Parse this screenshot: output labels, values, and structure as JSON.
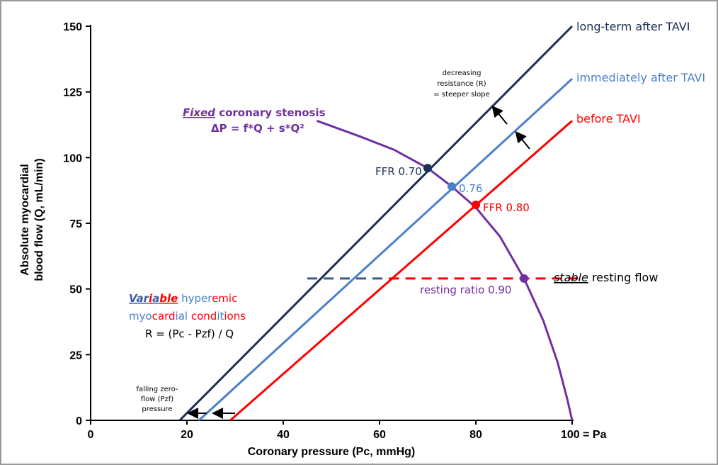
{
  "chart_data": {
    "type": "line",
    "xlabel": "Coronary pressure (Pc, mmHg)",
    "ylabel_lines": [
      "Absolute myocardial",
      "blood flow (Q, mL/min)"
    ],
    "xlim": [
      0,
      100
    ],
    "ylim": [
      0,
      150
    ],
    "x_ticks": [
      {
        "value": 0,
        "label": "0"
      },
      {
        "value": 20,
        "label": "20"
      },
      {
        "value": 40,
        "label": "40"
      },
      {
        "value": 60,
        "label": "60"
      },
      {
        "value": 80,
        "label": "80"
      },
      {
        "value": 100,
        "label": "100 = Pa"
      }
    ],
    "y_ticks": [
      0,
      25,
      50,
      75,
      100,
      125,
      150
    ],
    "grid": false,
    "series": [
      {
        "name": "long-term after TAVI",
        "color": "#1b2f55",
        "x": [
          18.5,
          100
        ],
        "y": [
          0,
          150
        ]
      },
      {
        "name": "immediately after TAVI",
        "color": "#4a7fcb",
        "x": [
          22.5,
          100
        ],
        "y": [
          0,
          130
        ]
      },
      {
        "name": "before TAVI",
        "color": "#ff0000",
        "x": [
          29,
          100
        ],
        "y": [
          0,
          114
        ]
      }
    ],
    "stenosis_curve": {
      "color": "#7030a0",
      "x": [
        47,
        56,
        63,
        70,
        75,
        80,
        85,
        90,
        94,
        97,
        99,
        100
      ],
      "y": [
        114,
        108,
        103,
        96,
        89,
        81,
        70,
        54,
        38,
        22,
        8,
        0
      ]
    },
    "points": [
      {
        "label": "FFR 0.70",
        "x": 70,
        "y": 96,
        "color": "#1b2f55"
      },
      {
        "label": "0.76",
        "x": 75,
        "y": 89,
        "color": "#4a7fcb"
      },
      {
        "label": "FFR 0.80",
        "x": 80,
        "y": 82,
        "color": "#ff0000"
      },
      {
        "label": "resting ratio 0.90",
        "x": 90,
        "y": 54,
        "color": "#7030a0"
      }
    ],
    "resting_flow_line": {
      "y": 54,
      "x": [
        45,
        98
      ]
    },
    "annotations": {
      "fixed_title_em": "Fixed",
      "fixed_title_rest": " coronary stenosis",
      "fixed_formula": "ΔP = f*Q + s*Q²",
      "variable_w1": "Var",
      "variable_w2": "i",
      "variable_w3": "a",
      "variable_w4": "ble",
      "variable_hy": " hyper",
      "variable_em": "emic",
      "variable_l2a": "myo",
      "variable_l2b": "card",
      "variable_l2c": "ial",
      "variable_l2d": " cond",
      "variable_l2e": "it",
      "variable_l2f": "ions",
      "variable_formula": "R = (Pc - Pzf) / Q",
      "resistance_1": "decreasing",
      "resistance_2": "resistance (R)",
      "resistance_3": "= steeper slope",
      "zero_1": "falling zero-",
      "zero_2": "flow (Pzf)",
      "zero_3": "pressure",
      "stable_em": "stable",
      "stable_rest": " resting flow"
    }
  }
}
